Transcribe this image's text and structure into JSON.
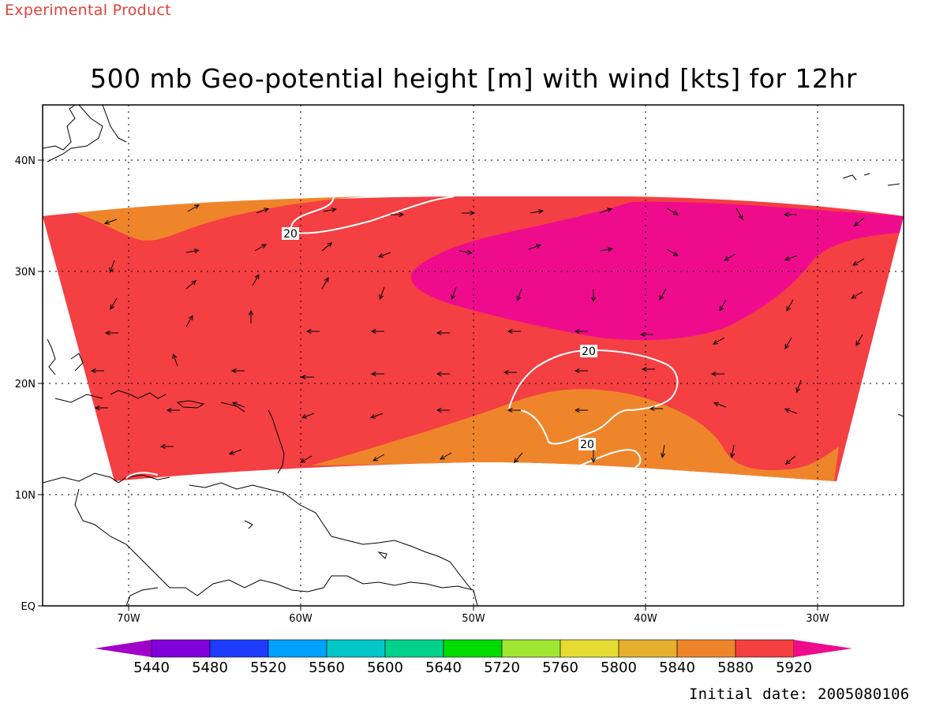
{
  "header": {
    "product_label": "Experimental Product",
    "title": "500 mb Geo-potential height [m] with wind [kts] for 12hr"
  },
  "map": {
    "lon_ticks": [
      "70W",
      "60W",
      "50W",
      "40W",
      "30W"
    ],
    "lat_ticks": [
      "40N",
      "30N",
      "20N",
      "10N",
      "EQ"
    ],
    "contour_labels": [
      "20",
      "20",
      "20"
    ],
    "region_colors": {
      "5880": "#ef852b",
      "5920": "#f43f43",
      "5960": "#ee0c8c"
    }
  },
  "colorbar": {
    "levels": [
      "5440",
      "5480",
      "5520",
      "5560",
      "5600",
      "5640",
      "5720",
      "5760",
      "5800",
      "5840",
      "5880",
      "5920"
    ],
    "colors": [
      "#a000c8",
      "#8200dc",
      "#1e3cff",
      "#00a0ff",
      "#00c8c8",
      "#00d28c",
      "#00dc00",
      "#a0e632",
      "#e6dc32",
      "#e6af2d",
      "#ef852b",
      "#f43f43",
      "#ee0c8c"
    ]
  },
  "footer": {
    "initial_date": "Initial date: 2005080106"
  }
}
